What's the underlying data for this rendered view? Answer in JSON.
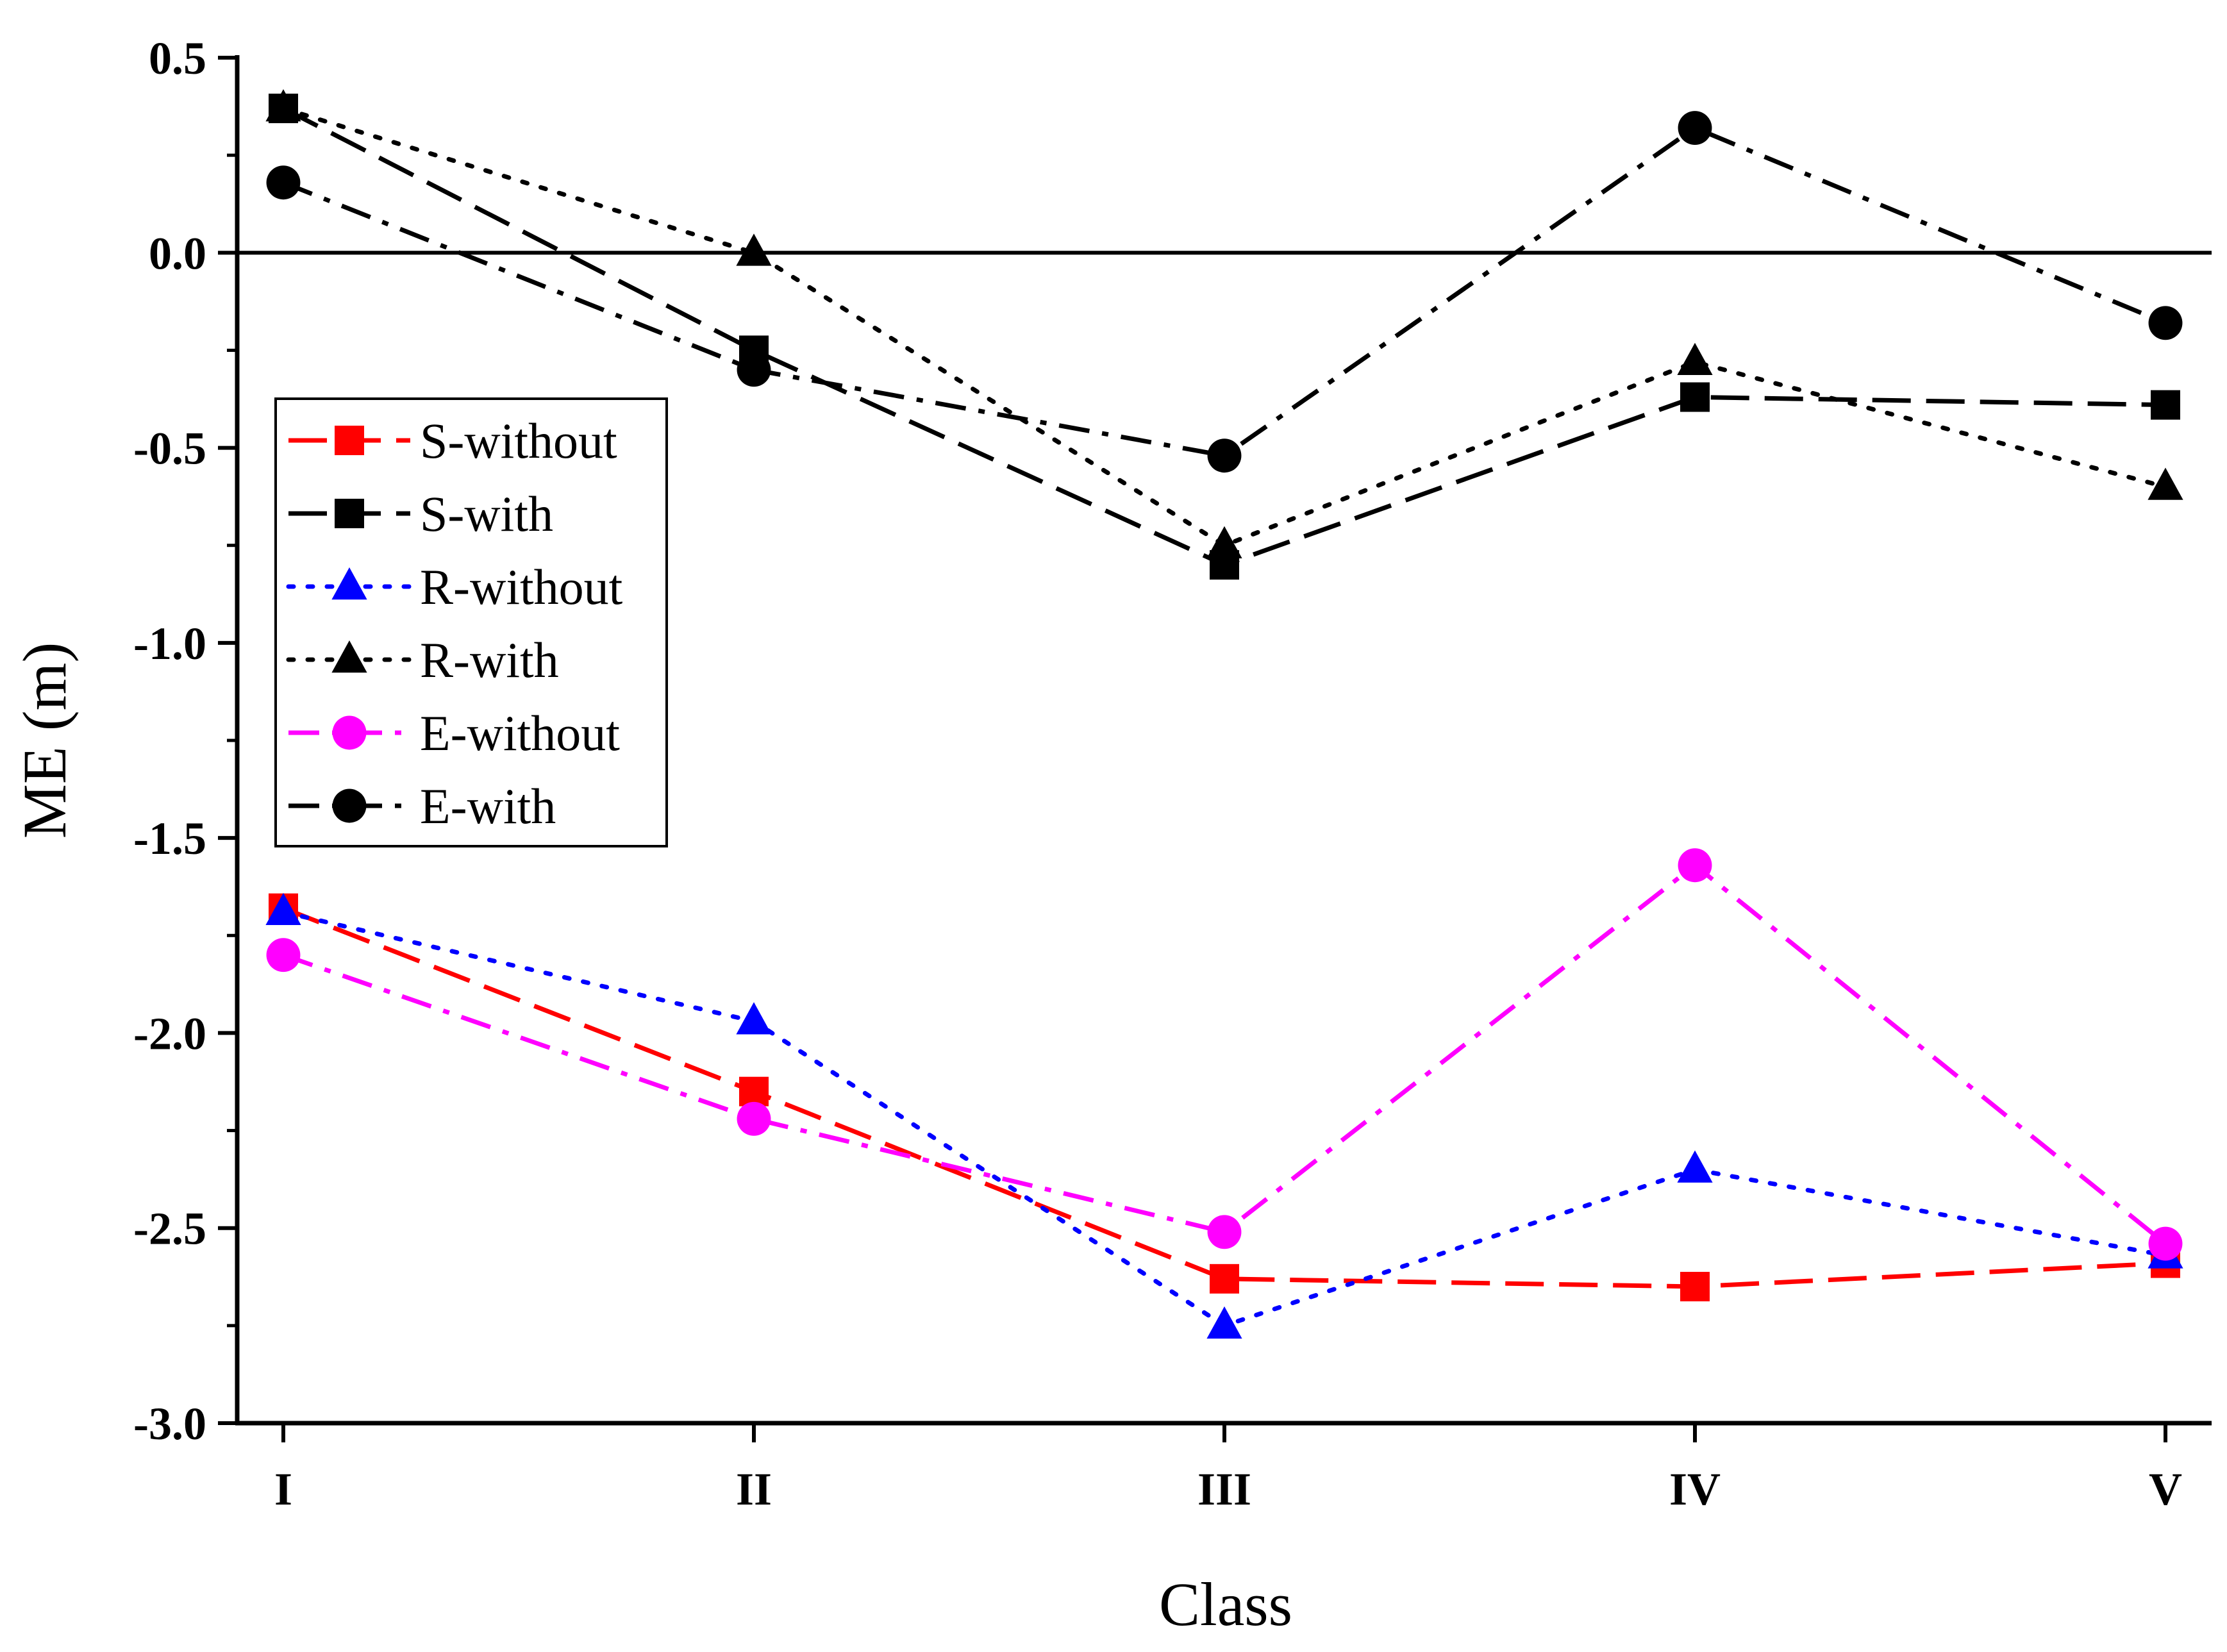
{
  "chart_data": {
    "type": "line",
    "xlabel": "Class",
    "ylabel": "ME (m)",
    "categories": [
      "I",
      "II",
      "III",
      "IV",
      "V"
    ],
    "ylim": [
      -3.0,
      0.5
    ],
    "yticks": [
      "0.5",
      "0.0",
      "-0.5",
      "-1.0",
      "-1.5",
      "-2.0",
      "-2.5",
      "-3.0"
    ],
    "yticks_values": [
      0.5,
      0.0,
      -0.5,
      -1.0,
      -1.5,
      -2.0,
      -2.5,
      -3.0
    ],
    "reference_line": 0.0,
    "grid": false,
    "legend_position": "center-left",
    "series": [
      {
        "name": "S-without",
        "color": "#ff0000",
        "marker": "square",
        "dash": "dashed",
        "values": [
          -1.68,
          -2.15,
          -2.63,
          -2.65,
          -2.59
        ]
      },
      {
        "name": "S-with",
        "color": "#000000",
        "marker": "square",
        "dash": "dashed",
        "values": [
          0.37,
          -0.25,
          -0.8,
          -0.37,
          -0.39
        ]
      },
      {
        "name": "R-without",
        "color": "#0000ff",
        "marker": "triangle",
        "dash": "dotted",
        "values": [
          -1.69,
          -1.97,
          -2.75,
          -2.35,
          -2.57
        ]
      },
      {
        "name": "R-with",
        "color": "#000000",
        "marker": "triangle",
        "dash": "dotted",
        "values": [
          0.37,
          0.0,
          -0.75,
          -0.28,
          -0.6
        ]
      },
      {
        "name": "E-without",
        "color": "#ff00ff",
        "marker": "circle",
        "dash": "dashdot",
        "values": [
          -1.8,
          -2.22,
          -2.51,
          -1.57,
          -2.54
        ]
      },
      {
        "name": "E-with",
        "color": "#000000",
        "marker": "circle",
        "dash": "dashdot",
        "values": [
          0.18,
          -0.3,
          -0.52,
          0.32,
          -0.18
        ]
      }
    ]
  }
}
